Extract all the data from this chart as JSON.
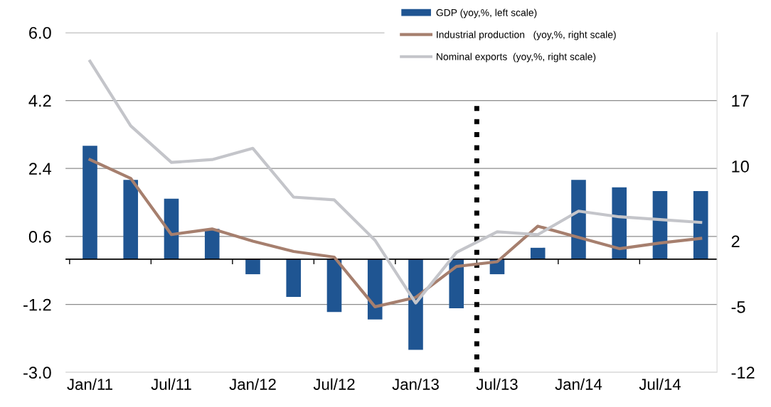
{
  "chart_data": {
    "type": "bar",
    "categories": [
      "Jan/11",
      null,
      "Jul/11",
      null,
      "Jan/12",
      null,
      "Jul/12",
      null,
      "Jan/13",
      null,
      "Jul/13",
      null,
      "Jan/14",
      null,
      "Jul/14",
      null
    ],
    "series": [
      {
        "name": "GDP (yoy,%, left scale)",
        "color": "#1f5592",
        "values": [
          3.0,
          2.1,
          1.6,
          0.8,
          -0.4,
          -1.0,
          -1.4,
          -1.6,
          -2.4,
          -1.3,
          -0.4,
          0.3,
          2.1,
          1.9,
          1.8,
          1.8
        ]
      },
      {
        "name": "Industrial production   (yoy,%, right scale)",
        "type": "line",
        "axis": "y2",
        "color": "#a67f6e",
        "values": [
          10.7,
          8.7,
          2.7,
          3.3,
          2.0,
          0.9,
          0.3,
          -5.0,
          -4.0,
          -0.7,
          -0.2,
          3.6,
          2.4,
          1.2,
          1.8,
          2.3
        ]
      },
      {
        "name": "Nominal exports  (yoy,%, right scale)",
        "type": "line",
        "axis": "y2",
        "color": "#c4c5ca",
        "values": [
          21.2,
          14.3,
          10.4,
          10.7,
          11.9,
          6.7,
          6.4,
          2.1,
          -4.6,
          0.8,
          3.0,
          2.7,
          5.2,
          4.6,
          4.3,
          4.0
        ]
      }
    ],
    "ylim": [
      -3.0,
      6.0
    ],
    "yticks": [
      {
        "value": -3.0,
        "label": "-3.0"
      },
      {
        "value": -1.2,
        "label": "-1.2"
      },
      {
        "value": 0.6,
        "label": "0.6"
      },
      {
        "value": 2.4,
        "label": "2.4"
      },
      {
        "value": 4.2,
        "label": "4.2"
      },
      {
        "value": 6.0,
        "label": "6.0"
      }
    ],
    "y2lim": [
      -12,
      24.25
    ],
    "y2ticks": [
      -12,
      -5,
      2,
      10,
      17
    ],
    "grid": "y",
    "legend": "top"
  }
}
